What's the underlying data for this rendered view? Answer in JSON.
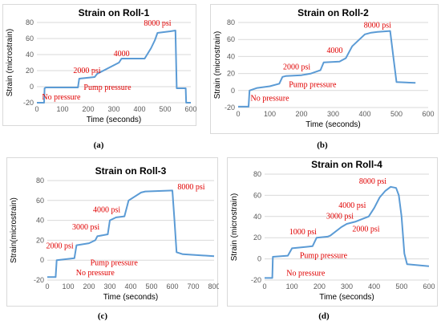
{
  "figure": {
    "panel_labels": [
      "(a)",
      "(b)",
      "(c)",
      "(d)"
    ]
  },
  "colors": {
    "line": "#5b9bd5",
    "annotation": "#e00000",
    "grid": "#d9d9d9",
    "tick_text": "#595959"
  },
  "chart_data": [
    {
      "type": "line",
      "title": "Strain on Roll-1",
      "xlabel": "Time (seconds)",
      "ylabel": "Strain (microstrain)",
      "xlim": [
        0,
        600
      ],
      "ylim": [
        -20,
        80
      ],
      "xticks": [
        0,
        100,
        200,
        300,
        400,
        500,
        600
      ],
      "yticks": [
        -20,
        0,
        20,
        40,
        60,
        80
      ],
      "grid": "horizontal",
      "series": [
        {
          "x": [
            0,
            28,
            30,
            35,
            160,
            165,
            225,
            235,
            320,
            330,
            420,
            445,
            460,
            470,
            520,
            540,
            545,
            580,
            582,
            590,
            600
          ],
          "y": [
            -20,
            -20,
            -2,
            -1,
            -1,
            10,
            12,
            16,
            30,
            35,
            35,
            48,
            58,
            67,
            69,
            70,
            -2,
            -2,
            -20,
            -20,
            -20
          ]
        }
      ],
      "annotations": [
        {
          "text": "8000 psi",
          "x": 470,
          "y": 76
        },
        {
          "text": "4000",
          "x": 330,
          "y": 38
        },
        {
          "text": "2000 psi",
          "x": 195,
          "y": 17
        },
        {
          "text": "Pump pressure",
          "x": 275,
          "y": -4
        },
        {
          "text": "No pressure",
          "x": 95,
          "y": -16
        }
      ]
    },
    {
      "type": "line",
      "title": "Strain on Roll-2",
      "xlabel": "Time (seconds)",
      "ylabel": "Strain (microstrain)",
      "xlim": [
        0,
        600
      ],
      "ylim": [
        -20,
        80
      ],
      "xticks": [
        0,
        100,
        200,
        300,
        400,
        500,
        600
      ],
      "yticks": [
        -20,
        0,
        20,
        40,
        60,
        80
      ],
      "grid": "horizontal",
      "series": [
        {
          "x": [
            0,
            33,
            36,
            60,
            100,
            130,
            140,
            150,
            200,
            230,
            260,
            270,
            320,
            340,
            360,
            400,
            420,
            440,
            480,
            490,
            500,
            560
          ],
          "y": [
            -19,
            -19,
            0,
            3,
            5,
            8,
            16,
            17,
            18,
            20,
            24,
            33,
            34,
            38,
            52,
            66,
            68,
            69,
            70,
            40,
            10,
            9
          ]
        }
      ],
      "annotations": [
        {
          "text": "8000 psi",
          "x": 440,
          "y": 74
        },
        {
          "text": "4000",
          "x": 305,
          "y": 44
        },
        {
          "text": "2000 psi",
          "x": 185,
          "y": 25
        },
        {
          "text": "Pump pressure",
          "x": 235,
          "y": 4
        },
        {
          "text": "No pressure",
          "x": 100,
          "y": -12
        }
      ]
    },
    {
      "type": "line",
      "title": "Strain on Roll-3",
      "xlabel": "Time (seconds)",
      "ylabel": "Strain(microstrain)",
      "xlim": [
        0,
        800
      ],
      "ylim": [
        -20,
        80
      ],
      "xticks": [
        0,
        100,
        200,
        300,
        400,
        500,
        600,
        700,
        800
      ],
      "yticks": [
        -20,
        0,
        20,
        40,
        60,
        80
      ],
      "grid": "horizontal",
      "series": [
        {
          "x": [
            0,
            40,
            45,
            130,
            140,
            200,
            230,
            240,
            290,
            300,
            320,
            330,
            370,
            390,
            450,
            470,
            600,
            610,
            620,
            650,
            800
          ],
          "y": [
            -17,
            -17,
            0,
            2,
            15,
            17,
            20,
            24,
            26,
            40,
            42,
            43,
            44,
            60,
            68,
            69,
            70,
            40,
            8,
            6,
            4
          ]
        }
      ],
      "annotations": [
        {
          "text": "8000 psi",
          "x": 690,
          "y": 71
        },
        {
          "text": "4000 psi",
          "x": 285,
          "y": 48
        },
        {
          "text": "3000 psi",
          "x": 185,
          "y": 31
        },
        {
          "text": "2000 psi",
          "x": 60,
          "y": 12
        },
        {
          "text": "Pump pressure",
          "x": 320,
          "y": -5
        },
        {
          "text": "No pressure",
          "x": 230,
          "y": -15
        }
      ]
    },
    {
      "type": "line",
      "title": "Strain on Roll-4",
      "xlabel": "Time (seconds)",
      "ylabel": "Strain (microstrain)",
      "xlim": [
        0,
        600
      ],
      "ylim": [
        -20,
        80
      ],
      "xticks": [
        0,
        100,
        200,
        300,
        400,
        500,
        600
      ],
      "yticks": [
        -20,
        0,
        20,
        40,
        60,
        80
      ],
      "grid": "horizontal",
      "series": [
        {
          "x": [
            0,
            28,
            30,
            85,
            100,
            175,
            190,
            230,
            240,
            280,
            300,
            330,
            360,
            380,
            400,
            420,
            440,
            460,
            480,
            490,
            500,
            510,
            520,
            600
          ],
          "y": [
            -18,
            -18,
            2,
            3,
            10,
            12,
            20,
            21,
            22,
            30,
            33,
            35,
            38,
            40,
            48,
            58,
            64,
            68,
            67,
            60,
            40,
            5,
            -5,
            -7
          ]
        }
      ],
      "annotations": [
        {
          "text": "8000 psi",
          "x": 395,
          "y": 71
        },
        {
          "text": "4000 psi",
          "x": 320,
          "y": 48
        },
        {
          "text": "3000 psi",
          "x": 275,
          "y": 38
        },
        {
          "text": "2000 psi",
          "x": 370,
          "y": 26
        },
        {
          "text": "1000 psi",
          "x": 140,
          "y": 23
        },
        {
          "text": "Pump pressure",
          "x": 215,
          "y": 1
        },
        {
          "text": "No pressure",
          "x": 150,
          "y": -16
        }
      ]
    }
  ]
}
